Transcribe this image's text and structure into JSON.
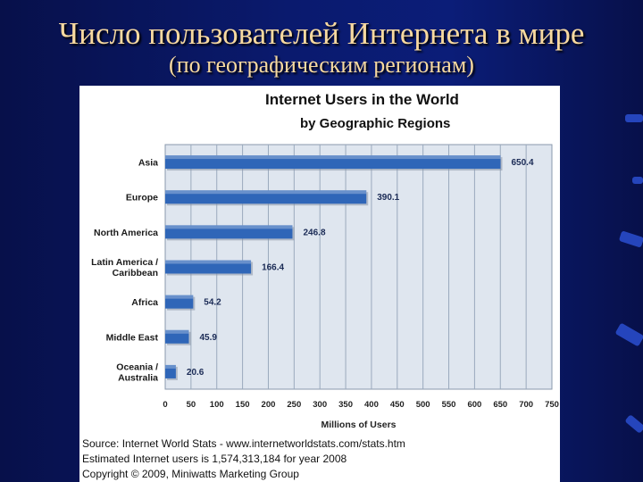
{
  "slide": {
    "title": "Число пользователей Интернета в мире",
    "subtitle": "(по географическим регионам)"
  },
  "source": {
    "line1": "Source: Internet World Stats - www.internetworldstats.com/stats.htm",
    "line2": "Estimated Internet users is 1,574,313,184 for year 2008",
    "line3": "Copyright © 2009, Miniwatts Marketing Group"
  },
  "colors": {
    "bar": "#2f66b8",
    "plot_bg": "#dfe6ef",
    "grid": "#9aa9bd"
  },
  "chart_data": {
    "type": "bar",
    "orientation": "horizontal",
    "title": "Internet Users in the World",
    "subtitle": "by Geographic Regions",
    "xlabel": "Millions of Users",
    "ylabel": "",
    "xlim": [
      0,
      750
    ],
    "xticks": [
      "0",
      "50",
      "100",
      "150",
      "200",
      "250",
      "300",
      "350",
      "400",
      "450",
      "500",
      "550",
      "600",
      "650",
      "700",
      "750"
    ],
    "grid": true,
    "categories": [
      "Asia",
      "Europe",
      "North America",
      "Latin America / Caribbean",
      "Africa",
      "Middle East",
      "Oceania / Australia"
    ],
    "category_lines": [
      [
        "Asia"
      ],
      [
        "Europe"
      ],
      [
        "North America"
      ],
      [
        "Latin America /",
        "Caribbean"
      ],
      [
        "Africa"
      ],
      [
        "Middle East"
      ],
      [
        "Oceania  /",
        "Australia"
      ]
    ],
    "values": [
      650.4,
      390.1,
      246.8,
      166.4,
      54.2,
      45.9,
      20.6
    ],
    "value_labels": [
      "650.4",
      "390.1",
      "246.8",
      "166.4",
      "54.2",
      "45.9",
      "20.6"
    ]
  }
}
